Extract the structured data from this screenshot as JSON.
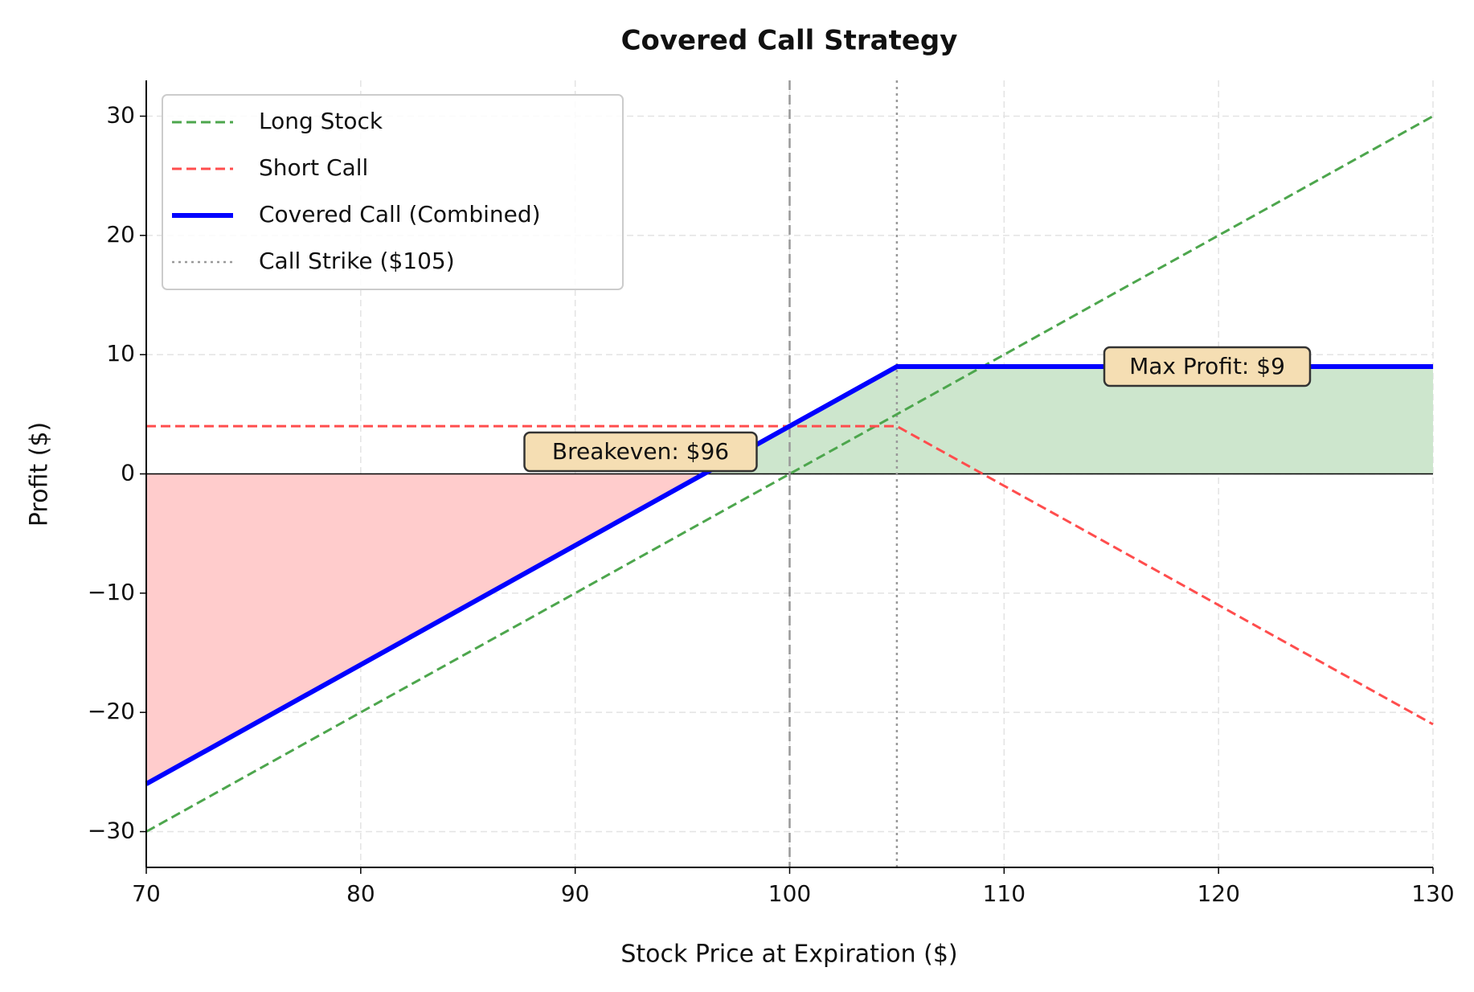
{
  "chart_data": {
    "type": "line",
    "title": "Covered Call Strategy",
    "x_label": "Stock Price at Expiration ($)",
    "y_label": "Profit ($)",
    "x": [
      70,
      96,
      100,
      105,
      130
    ],
    "series": [
      {
        "name": "Long Stock",
        "color": "#4da64d",
        "dash": "dashed",
        "width": 3,
        "values": [
          -30,
          -4,
          0,
          5,
          30
        ]
      },
      {
        "name": "Short Call",
        "color": "#ff4d4d",
        "dash": "dashed",
        "width": 3,
        "values": [
          4,
          4,
          4,
          4,
          -21
        ]
      },
      {
        "name": "Covered Call (Combined)",
        "color": "#0000ff",
        "dash": "solid",
        "width": 6,
        "values": [
          -26,
          0,
          4,
          9,
          9
        ],
        "fill_positive": "#cde6cd",
        "fill_negative": "#ffcccc"
      }
    ],
    "reference_lines": [
      {
        "x": 100,
        "color": "#999999",
        "dash": "dashed"
      },
      {
        "name": "Call Strike ($105)",
        "x": 105,
        "color": "#999999",
        "dash": "dotted"
      }
    ],
    "annotations": [
      {
        "text": "Breakeven: $96"
      },
      {
        "text": "Max Profit: $9"
      }
    ],
    "annotation_box_color": "#f5deb3",
    "xlim": [
      70,
      130
    ],
    "ylim": [
      -33,
      33
    ],
    "xticks": [
      70,
      80,
      90,
      100,
      110,
      120,
      130
    ],
    "yticks": [
      {
        "value": -30,
        "label": "−30"
      },
      {
        "value": -20,
        "label": "−20"
      },
      {
        "value": -10,
        "label": "−10"
      },
      0,
      10,
      20,
      30
    ],
    "grid": true,
    "zero_line": true,
    "legend": "upper left"
  }
}
